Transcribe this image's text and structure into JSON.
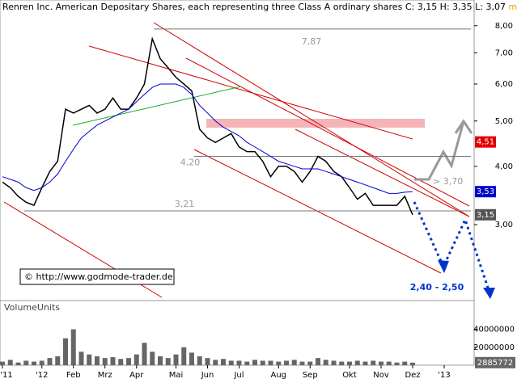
{
  "chart_data": [
    {
      "type": "line",
      "title": "Renren Inc. American Depositary Shares, each representing three Class A ordinary shares",
      "ohlc_label": "C: 3,15 H: 3,35 L: 3,07",
      "tag_line": "move move",
      "categories": [
        "'11",
        null,
        null,
        null,
        null,
        "'12",
        null,
        null,
        null,
        "Feb",
        null,
        null,
        null,
        "Mrz",
        null,
        null,
        null,
        "Apr",
        null,
        null,
        null,
        null,
        "Mai",
        null,
        null,
        null,
        "Jun",
        null,
        null,
        null,
        "Jul",
        null,
        null,
        null,
        null,
        "Aug",
        null,
        null,
        null,
        "Sep",
        null,
        null,
        null,
        null,
        "Okt",
        null,
        null,
        null,
        "Nov",
        null,
        null,
        null,
        "Dez",
        null,
        null,
        null,
        "'13"
      ],
      "series": [
        {
          "color": "#000000",
          "values": [
            3.7,
            3.6,
            3.45,
            3.35,
            3.3,
            3.6,
            3.9,
            4.1,
            5.3,
            5.2,
            5.3,
            5.4,
            5.2,
            5.3,
            5.6,
            5.3,
            5.3,
            5.6,
            6.0,
            7.5,
            6.8,
            6.5,
            6.2,
            6.0,
            5.8,
            4.8,
            4.6,
            4.5,
            4.6,
            4.7,
            4.4,
            4.3,
            4.3,
            4.1,
            3.8,
            4.0,
            4.0,
            3.9,
            3.7,
            3.9,
            4.2,
            4.1,
            3.9,
            3.8,
            3.6,
            3.4,
            3.5,
            3.3,
            3.3,
            3.3,
            3.3,
            3.45,
            3.15,
            null,
            null,
            null,
            null
          ]
        },
        {
          "color": "#0000cc",
          "values": [
            3.8,
            3.75,
            3.7,
            3.6,
            3.55,
            3.6,
            3.7,
            3.85,
            4.1,
            4.35,
            4.6,
            4.75,
            4.9,
            5.0,
            5.1,
            5.2,
            5.3,
            5.5,
            5.7,
            5.9,
            6.0,
            6.0,
            6.0,
            5.9,
            5.7,
            5.4,
            5.2,
            5.0,
            4.85,
            4.75,
            4.65,
            4.5,
            4.4,
            4.3,
            4.2,
            4.1,
            4.05,
            4.0,
            3.95,
            3.95,
            3.95,
            3.9,
            3.85,
            3.8,
            3.75,
            3.7,
            3.65,
            3.6,
            3.55,
            3.5,
            3.5,
            3.52,
            3.53,
            null,
            null,
            null,
            null
          ]
        }
      ],
      "log_scale": true,
      "ylim": [
        2.08,
        8.9
      ],
      "yticks": [
        {
          "value": 3,
          "label": "3,00"
        },
        {
          "value": 4,
          "label": "4,00"
        },
        {
          "value": 5,
          "label": "5,00"
        },
        {
          "value": 6,
          "label": "6,00"
        },
        {
          "value": 7,
          "label": "7,00"
        },
        {
          "value": 8,
          "label": "8,00"
        }
      ],
      "levels": [
        {
          "value": 7.87,
          "label": "7,87"
        },
        {
          "value": 4.2,
          "label": "4,20"
        },
        {
          "value": 3.21,
          "label": "3,21"
        }
      ],
      "price_tags": [
        {
          "value": 4.51,
          "label": "4,51",
          "color": "#e00000"
        },
        {
          "value": 3.53,
          "label": "3,53",
          "color": "#0000cc"
        },
        {
          "value": 3.15,
          "label": "3,15",
          "color": "#555555"
        }
      ],
      "annotations": [
        "> 3,70",
        "2,40 - 2,50"
      ],
      "copyright": "© http://www.godmode-trader.de"
    },
    {
      "type": "bar",
      "title": "VolumeUnits",
      "color": "#666666",
      "values": [
        4000000,
        6000000,
        3000000,
        5000000,
        4000000,
        5000000,
        8000000,
        10000000,
        30000000,
        40000000,
        15000000,
        12000000,
        10000000,
        8000000,
        9000000,
        7000000,
        8000000,
        12000000,
        25000000,
        15000000,
        10000000,
        8000000,
        12000000,
        20000000,
        14000000,
        10000000,
        8000000,
        6000000,
        7000000,
        5000000,
        5000000,
        4000000,
        6000000,
        5000000,
        5000000,
        4000000,
        5000000,
        6000000,
        4000000,
        4000000,
        8000000,
        6000000,
        5000000,
        4000000,
        4000000,
        5000000,
        4000000,
        5000000,
        4000000,
        4000000,
        3000000,
        4000000,
        2885772,
        null,
        null,
        null,
        null
      ],
      "ylim": [
        0,
        72000000
      ],
      "yticks": [
        20000000,
        40000000
      ]
    }
  ]
}
